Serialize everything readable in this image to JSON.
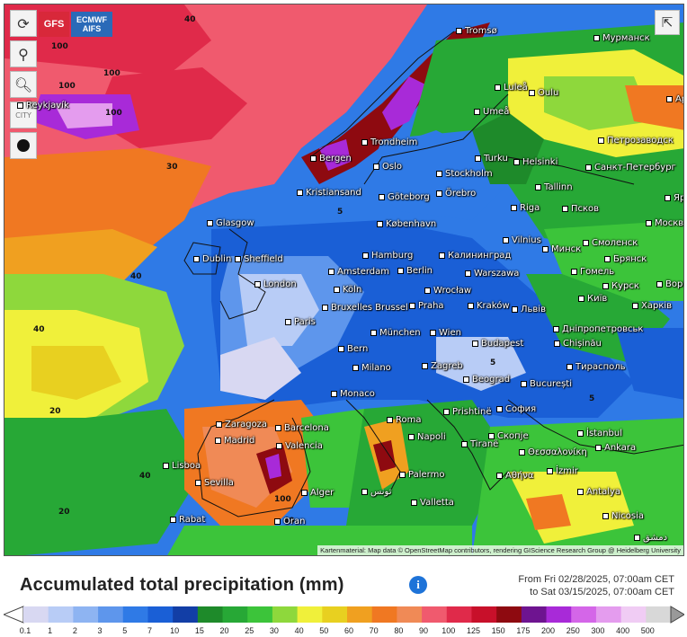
{
  "toolbar": {
    "refresh_icon": "refresh-icon",
    "locate_icon": "map-pin-icon",
    "zoom_icon": "zoom-icon",
    "city_label": "CITY",
    "layer_icon": "balloon-icon"
  },
  "models": [
    {
      "label": "GFS",
      "color": "#d8283a"
    },
    {
      "label": "ECMWF AIFS",
      "color": "#2a6ab8"
    }
  ],
  "share_icon": "share-icon",
  "attribution": "Kartenmaterial: Map data © OpenStreetMap contributors, rendering GIScience Research Group @ Heidelberg University",
  "title": "Accumulated total precipitation (mm)",
  "period": {
    "from": "From Fri 02/28/2025, 07:00am CET",
    "to": "to Sat 03/15/2025, 07:00am CET"
  },
  "legend": {
    "labels": [
      "0.1",
      "1",
      "2",
      "3",
      "5",
      "7",
      "10",
      "15",
      "20",
      "25",
      "30",
      "40",
      "50",
      "60",
      "70",
      "80",
      "90",
      "100",
      "125",
      "150",
      "175",
      "200",
      "250",
      "300",
      "400",
      "500"
    ],
    "colors": [
      "#d8d8f2",
      "#b8ccf6",
      "#8eb4f2",
      "#5e96ec",
      "#2f7ae6",
      "#1a5fd6",
      "#123ea6",
      "#1e8a2a",
      "#27a836",
      "#3cc43a",
      "#8ed83c",
      "#f0f03a",
      "#e8d020",
      "#f0a020",
      "#f07822",
      "#f08a56",
      "#f05a6e",
      "#e02a4a",
      "#c8102a",
      "#8e0a10",
      "#6e1490",
      "#a82ad8",
      "#d466e8",
      "#e49cee",
      "#f0ccf4",
      "#d8d8d8"
    ],
    "left_color": "#ffffff",
    "right_color": "#999999"
  },
  "cities": [
    {
      "name": "Tromsø"
    },
    {
      "name": "Мурманск"
    },
    {
      "name": "Luleå"
    },
    {
      "name": "Oulu"
    },
    {
      "name": "Архангельск"
    },
    {
      "name": "Umeå"
    },
    {
      "name": "Trondheim"
    },
    {
      "name": "Reykjavík"
    },
    {
      "name": "Петрозаводск"
    },
    {
      "name": "Turku"
    },
    {
      "name": "Helsinki"
    },
    {
      "name": "Bergen"
    },
    {
      "name": "Oslo"
    },
    {
      "name": "Stockholm"
    },
    {
      "name": "Санкт-Петербург"
    },
    {
      "name": "Tallinn"
    },
    {
      "name": "Kristiansand"
    },
    {
      "name": "Göteborg"
    },
    {
      "name": "Örebro"
    },
    {
      "name": "Ярославль"
    },
    {
      "name": "Псков"
    },
    {
      "name": "Riga"
    },
    {
      "name": "København"
    },
    {
      "name": "Glasgow"
    },
    {
      "name": "Москва"
    },
    {
      "name": "Vilnius"
    },
    {
      "name": "Минск"
    },
    {
      "name": "Смоленск"
    },
    {
      "name": "Калининград"
    },
    {
      "name": "Hamburg"
    },
    {
      "name": "Dublin"
    },
    {
      "name": "Sheffield"
    },
    {
      "name": "Брянск"
    },
    {
      "name": "Гомель"
    },
    {
      "name": "Berlin"
    },
    {
      "name": "Amsterdam"
    },
    {
      "name": "Warszawa"
    },
    {
      "name": "London"
    },
    {
      "name": "Курск"
    },
    {
      "name": "Воронеж"
    },
    {
      "name": "Köln"
    },
    {
      "name": "Wrocław"
    },
    {
      "name": "Київ"
    },
    {
      "name": "Bruxelles Brussel"
    },
    {
      "name": "Praha"
    },
    {
      "name": "Kraków"
    },
    {
      "name": "Львів"
    },
    {
      "name": "Харків"
    },
    {
      "name": "Paris"
    },
    {
      "name": "Дніпропетровськ"
    },
    {
      "name": "München"
    },
    {
      "name": "Wien"
    },
    {
      "name": "Chișinău"
    },
    {
      "name": "Budapest"
    },
    {
      "name": "Bern"
    },
    {
      "name": "Тирасполь"
    },
    {
      "name": "Milano"
    },
    {
      "name": "Zagreb"
    },
    {
      "name": "Beograd"
    },
    {
      "name": "București"
    },
    {
      "name": "Monaco"
    },
    {
      "name": "Prishtinë"
    },
    {
      "name": "София"
    },
    {
      "name": "Roma"
    },
    {
      "name": "Zaragoza"
    },
    {
      "name": "Barcelona"
    },
    {
      "name": "Madrid"
    },
    {
      "name": "Valencia"
    },
    {
      "name": "Napoli"
    },
    {
      "name": "Tiranë"
    },
    {
      "name": "Скопје"
    },
    {
      "name": "İstanbul"
    },
    {
      "name": "Θεσσαλονίκη"
    },
    {
      "name": "Ankara"
    },
    {
      "name": "Lisboa"
    },
    {
      "name": "İzmir"
    },
    {
      "name": "Sevilla"
    },
    {
      "name": "Αθήνα"
    },
    {
      "name": "Palermo"
    },
    {
      "name": "Antalya"
    },
    {
      "name": "Alger"
    },
    {
      "name": "تونس"
    },
    {
      "name": "Valletta"
    },
    {
      "name": "Rabat"
    },
    {
      "name": "Oran"
    },
    {
      "name": "Nicosia"
    },
    {
      "name": "دمشق"
    }
  ]
}
